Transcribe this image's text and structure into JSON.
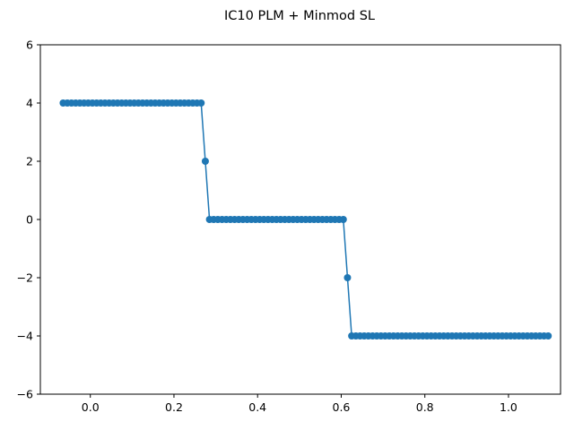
{
  "chart_data": {
    "type": "line",
    "title": "IC10 PLM + Minmod SL",
    "xlabel": "",
    "ylabel": "",
    "xlim": [
      -0.1195,
      1.1245
    ],
    "ylim": [
      -6,
      6
    ],
    "x_ticks": [
      0.0,
      0.2,
      0.4,
      0.6,
      0.8,
      1.0
    ],
    "x_tick_labels": [
      "0.0",
      "0.2",
      "0.4",
      "0.6",
      "0.8",
      "1.0"
    ],
    "y_ticks": [
      -6,
      -4,
      -2,
      0,
      2,
      4,
      6
    ],
    "y_tick_labels": [
      "−6",
      "−4",
      "−2",
      "0",
      "2",
      "4",
      "6"
    ],
    "grid": false,
    "marker": "circle",
    "color": "#1f77b4",
    "x_start": -0.065,
    "x_step": 0.01,
    "series": [
      {
        "values": [
          4,
          4,
          4,
          4,
          4,
          4,
          4,
          4,
          4,
          4,
          4,
          4,
          4,
          4,
          4,
          4,
          4,
          4,
          4,
          4,
          4,
          4,
          4,
          4,
          4,
          4,
          4,
          4,
          4,
          4,
          4,
          4,
          4,
          4,
          2,
          0,
          0,
          0,
          0,
          0,
          0,
          0,
          0,
          0,
          0,
          0,
          0,
          0,
          0,
          0,
          0,
          0,
          0,
          0,
          0,
          0,
          0,
          0,
          0,
          0,
          0,
          0,
          0,
          0,
          0,
          0,
          0,
          0,
          -2,
          -4,
          -4,
          -4,
          -4,
          -4,
          -4,
          -4,
          -4,
          -4,
          -4,
          -4,
          -4,
          -4,
          -4,
          -4,
          -4,
          -4,
          -4,
          -4,
          -4,
          -4,
          -4,
          -4,
          -4,
          -4,
          -4,
          -4,
          -4,
          -4,
          -4,
          -4,
          -4,
          -4,
          -4,
          -4,
          -4,
          -4,
          -4,
          -4,
          -4,
          -4,
          -4,
          -4,
          -4,
          -4,
          -4,
          -4,
          -4
        ]
      }
    ]
  }
}
